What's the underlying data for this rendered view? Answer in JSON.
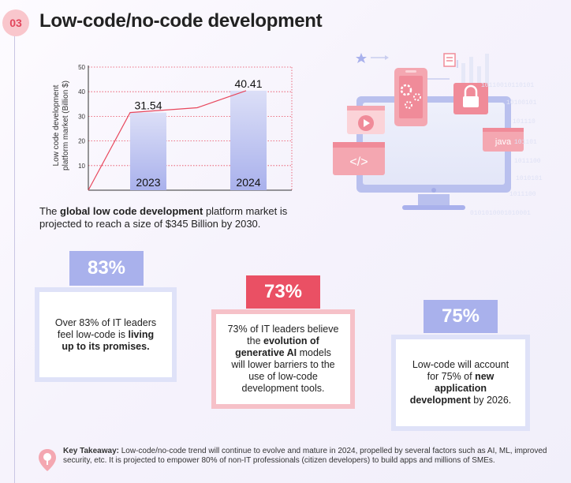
{
  "section_number": "03",
  "title": "Low-code/no-code development",
  "chart_data": {
    "type": "bar",
    "categories": [
      "2023",
      "2024"
    ],
    "values": [
      31.54,
      40.41
    ],
    "value_labels": [
      "31.54",
      "40.41"
    ],
    "ylabel": "Low code development platform market (Billion $)",
    "ylim": [
      0,
      50
    ],
    "yticks": [
      10,
      20,
      30,
      40,
      50
    ],
    "trend_line": [
      0,
      31.54,
      33.5,
      40.41
    ],
    "grid": true,
    "colors": {
      "bar_top": "#dcdff7",
      "bar_bottom": "#a9b1ec",
      "line": "#e8485d",
      "grid": "#e8485d"
    }
  },
  "caption": {
    "pre": "The ",
    "bold": "global low code development",
    "post": " platform market is projected to reach a size of $345 Billion by 2030."
  },
  "illustration": {
    "code_tag": "</>",
    "java_label": "java",
    "binary_lines": [
      "10110010110101",
      "10100101",
      "101110",
      "101101",
      "1011100",
      "1010101",
      "1011100",
      "0101010001010001"
    ]
  },
  "stats": [
    {
      "value": "83%",
      "pre": "Over 83% of IT leaders feel low-code is ",
      "bold": "living up to its promises.",
      "post": "",
      "color": "#a9b1ec"
    },
    {
      "value": "73%",
      "pre": "73% of IT leaders believe the ",
      "bold": "evolution of generative AI",
      "post": " models will lower barriers to the use of low-code development tools.",
      "color": "#ea5064"
    },
    {
      "value": "75%",
      "pre": "Low-code will account for 75% of ",
      "bold": "new application development",
      "post": " by 2026.",
      "color": "#a9b1ec"
    }
  ],
  "takeaway": {
    "label": "Key Takeaway:",
    "text": " Low-code/no-code trend will continue to evolve and mature in 2024, propelled by several factors such as AI, ML, improved security, etc. It is projected to empower 80% of non-IT professionals (citizen developers) to build apps and millions of SMEs."
  }
}
